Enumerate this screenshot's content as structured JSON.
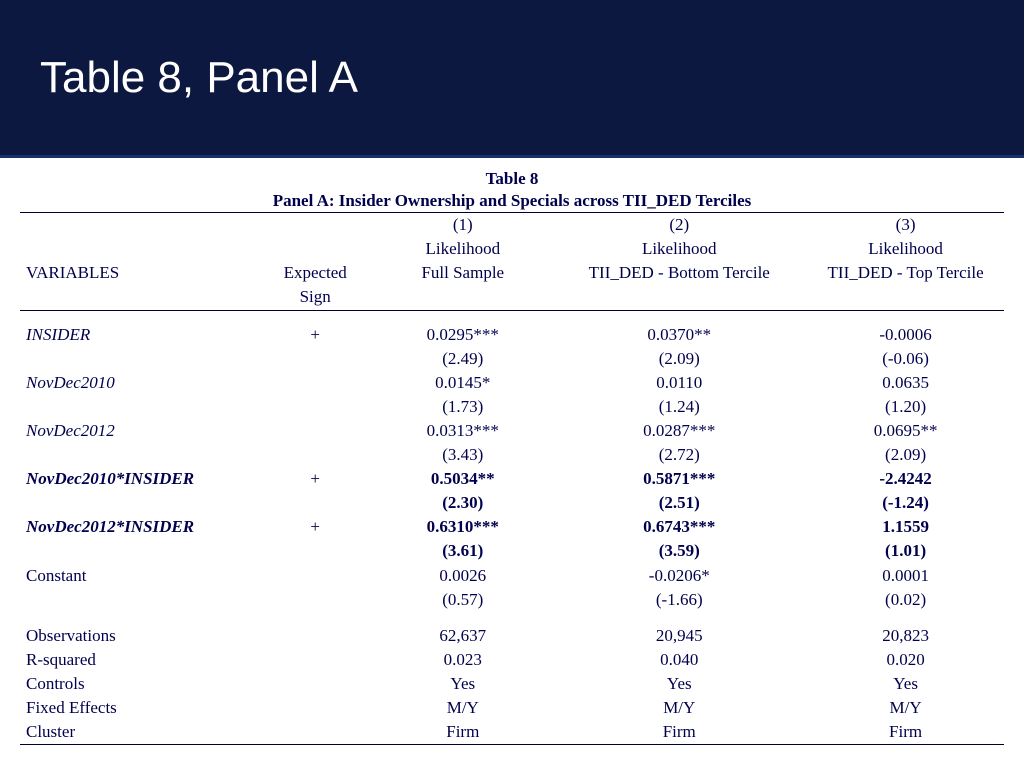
{
  "header": {
    "title": "Table 8, Panel A"
  },
  "table": {
    "type": "table",
    "title_line1": "Table 8",
    "title_line2": "Panel A: Insider Ownership and Specials across TII_DED Terciles",
    "text_color": "#00004d",
    "header_bg": "#0d1840",
    "columns": {
      "var_label": "VARIABLES",
      "sign_label_top": "Expected",
      "sign_label_bot": "Sign",
      "c1_num": "(1)",
      "c1_l1": "Likelihood",
      "c1_l2": "Full Sample",
      "c2_num": "(2)",
      "c2_l1": "Likelihood",
      "c2_l2": "TII_DED - Bottom Tercile",
      "c3_num": "(3)",
      "c3_l1": "Likelihood",
      "c3_l2": "TII_DED - Top Tercile"
    },
    "rows": [
      {
        "name": "INSIDER",
        "italic": true,
        "bold": false,
        "sign": "+",
        "c1": "0.0295***",
        "t1": "(2.49)",
        "c2": "0.0370**",
        "t2": "(2.09)",
        "c3": "-0.0006",
        "t3": "(-0.06)"
      },
      {
        "name": "NovDec2010",
        "italic": true,
        "bold": false,
        "sign": "",
        "c1": "0.0145*",
        "t1": "(1.73)",
        "c2": "0.0110",
        "t2": "(1.24)",
        "c3": "0.0635",
        "t3": "(1.20)"
      },
      {
        "name": "NovDec2012",
        "italic": true,
        "bold": false,
        "sign": "",
        "c1": "0.0313***",
        "t1": "(3.43)",
        "c2": "0.0287***",
        "t2": "(2.72)",
        "c3": "0.0695**",
        "t3": "(2.09)"
      },
      {
        "name": "NovDec2010*INSIDER",
        "italic": true,
        "bold": true,
        "sign": "+",
        "c1": "0.5034**",
        "t1": "(2.30)",
        "c2": "0.5871***",
        "t2": "(2.51)",
        "c3": "-2.4242",
        "t3": "(-1.24)"
      },
      {
        "name": "NovDec2012*INSIDER",
        "italic": true,
        "bold": true,
        "sign": "+",
        "c1": "0.6310***",
        "t1": "(3.61)",
        "c2": "0.6743***",
        "t2": "(3.59)",
        "c3": "1.1559",
        "t3": "(1.01)"
      },
      {
        "name": "Constant",
        "italic": false,
        "bold": false,
        "sign": "",
        "c1": "0.0026",
        "t1": "(0.57)",
        "c2": "-0.0206*",
        "t2": "(-1.66)",
        "c3": "0.0001",
        "t3": "(0.02)"
      }
    ],
    "footer": [
      {
        "name": "Observations",
        "c1": "62,637",
        "c2": "20,945",
        "c3": "20,823"
      },
      {
        "name": "R-squared",
        "c1": "0.023",
        "c2": "0.040",
        "c3": "0.020"
      },
      {
        "name": "Controls",
        "c1": "Yes",
        "c2": "Yes",
        "c3": "Yes"
      },
      {
        "name": "Fixed Effects",
        "c1": "M/Y",
        "c2": "M/Y",
        "c3": "M/Y"
      },
      {
        "name": "Cluster",
        "c1": "Firm",
        "c2": "Firm",
        "c3": "Firm"
      }
    ]
  }
}
